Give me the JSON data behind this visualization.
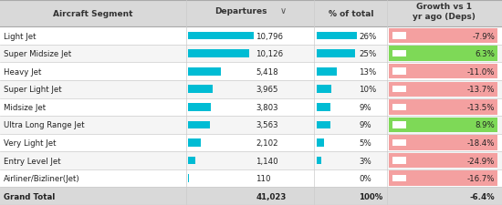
{
  "segments": [
    "Light Jet",
    "Super Midsize Jet",
    "Heavy Jet",
    "Super Light Jet",
    "Midsize Jet",
    "Ultra Long Range Jet",
    "Very Light Jet",
    "Entry Level Jet",
    "Airliner/Bizliner(Jet)",
    "Grand Total"
  ],
  "departures": [
    10796,
    10126,
    5418,
    3965,
    3803,
    3563,
    2102,
    1140,
    110,
    41023
  ],
  "departures_str": [
    "10,796",
    "10,126",
    "5,418",
    "3,965",
    "3,803",
    "3,563",
    "2,102",
    "1,140",
    "110",
    "41,023"
  ],
  "pct_of_total": [
    26,
    25,
    13,
    10,
    9,
    9,
    5,
    3,
    0,
    100
  ],
  "pct_str": [
    "26%",
    "25%",
    "13%",
    "10%",
    "9%",
    "9%",
    "5%",
    "3%",
    "0%",
    "100%"
  ],
  "growth": [
    -7.9,
    6.3,
    -11.0,
    -13.7,
    -13.5,
    8.9,
    -18.4,
    -24.9,
    -16.7,
    -6.4
  ],
  "growth_str": [
    "-7.9%",
    "6.3%",
    "-11.0%",
    "-13.7%",
    "-13.5%",
    "8.9%",
    "-18.4%",
    "-24.9%",
    "-16.7%",
    "-6.4%"
  ],
  "growth_bg": [
    "#f4a0a0",
    "#7ed957",
    "#f4a0a0",
    "#f4a0a0",
    "#f4a0a0",
    "#7ed957",
    "#f4a0a0",
    "#f4a0a0",
    "#f4a0a0",
    "none"
  ],
  "header_bg": "#d9d9d9",
  "bar_color": "#00bcd4",
  "max_departures": 10796,
  "max_pct": 26,
  "fig_width": 5.5,
  "fig_height": 2.26
}
